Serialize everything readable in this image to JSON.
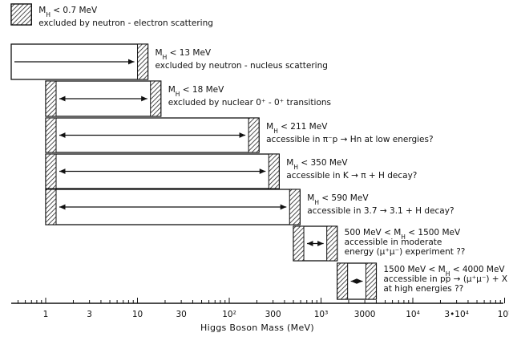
{
  "chart_data": {
    "type": "bar",
    "orientation": "horizontal",
    "x_scale": "log",
    "xlim": [
      0.42,
      100000
    ],
    "xlabel": "Higgs Boson  Mass  (MeV)",
    "ticks": [
      {
        "value": 1,
        "label": "1"
      },
      {
        "value": 3,
        "label": "3"
      },
      {
        "value": 10,
        "label": "10"
      },
      {
        "value": 30,
        "label": "30"
      },
      {
        "value": 100,
        "label": "10²"
      },
      {
        "value": 300,
        "label": "300"
      },
      {
        "value": 1000,
        "label": "10³"
      },
      {
        "value": 3000,
        "label": "3000"
      },
      {
        "value": 10000,
        "label": "10⁴"
      },
      {
        "value": 30000,
        "label": "3•10⁴"
      },
      {
        "value": 100000,
        "label": "10⁵"
      }
    ],
    "ranges": [
      {
        "from": 0.42,
        "to": 0.7,
        "arrow": false,
        "label_lines": [
          "M_H < 0.7 MeV",
          "excluded by neutron - electron scattering"
        ]
      },
      {
        "from": 0.42,
        "to": 13,
        "arrow": true,
        "label_lines": [
          "M_H < 13 MeV",
          "excluded by neutron - nucleus scattering"
        ]
      },
      {
        "from": 1,
        "to": 18,
        "arrow": true,
        "label_lines": [
          "M_H < 18 MeV",
          "excluded by nuclear 0⁺ - 0⁺ transitions"
        ]
      },
      {
        "from": 1,
        "to": 211,
        "arrow": true,
        "label_lines": [
          "M_H < 211 MeV",
          "accessible in π⁻p → Hn at low energies?"
        ]
      },
      {
        "from": 1,
        "to": 350,
        "arrow": true,
        "label_lines": [
          "M_H < 350 MeV",
          "accessible in K → π + H decay?"
        ]
      },
      {
        "from": 1,
        "to": 590,
        "arrow": true,
        "label_lines": [
          "M_H < 590 MeV",
          "accessible in 3.7 → 3.1 + H decay?"
        ]
      },
      {
        "from": 500,
        "to": 1500,
        "arrow": true,
        "label_lines": [
          "500 MeV < M_H < 1500 MeV",
          "accessible in moderate",
          "energy (μ⁺μ⁻) experiment ??"
        ]
      },
      {
        "from": 1500,
        "to": 4000,
        "arrow": true,
        "label_lines": [
          "1500 MeV < M_H < 4000 MeV",
          "accessible in pp → (μ⁺μ⁻) + X",
          "at high energies ??"
        ]
      }
    ]
  }
}
